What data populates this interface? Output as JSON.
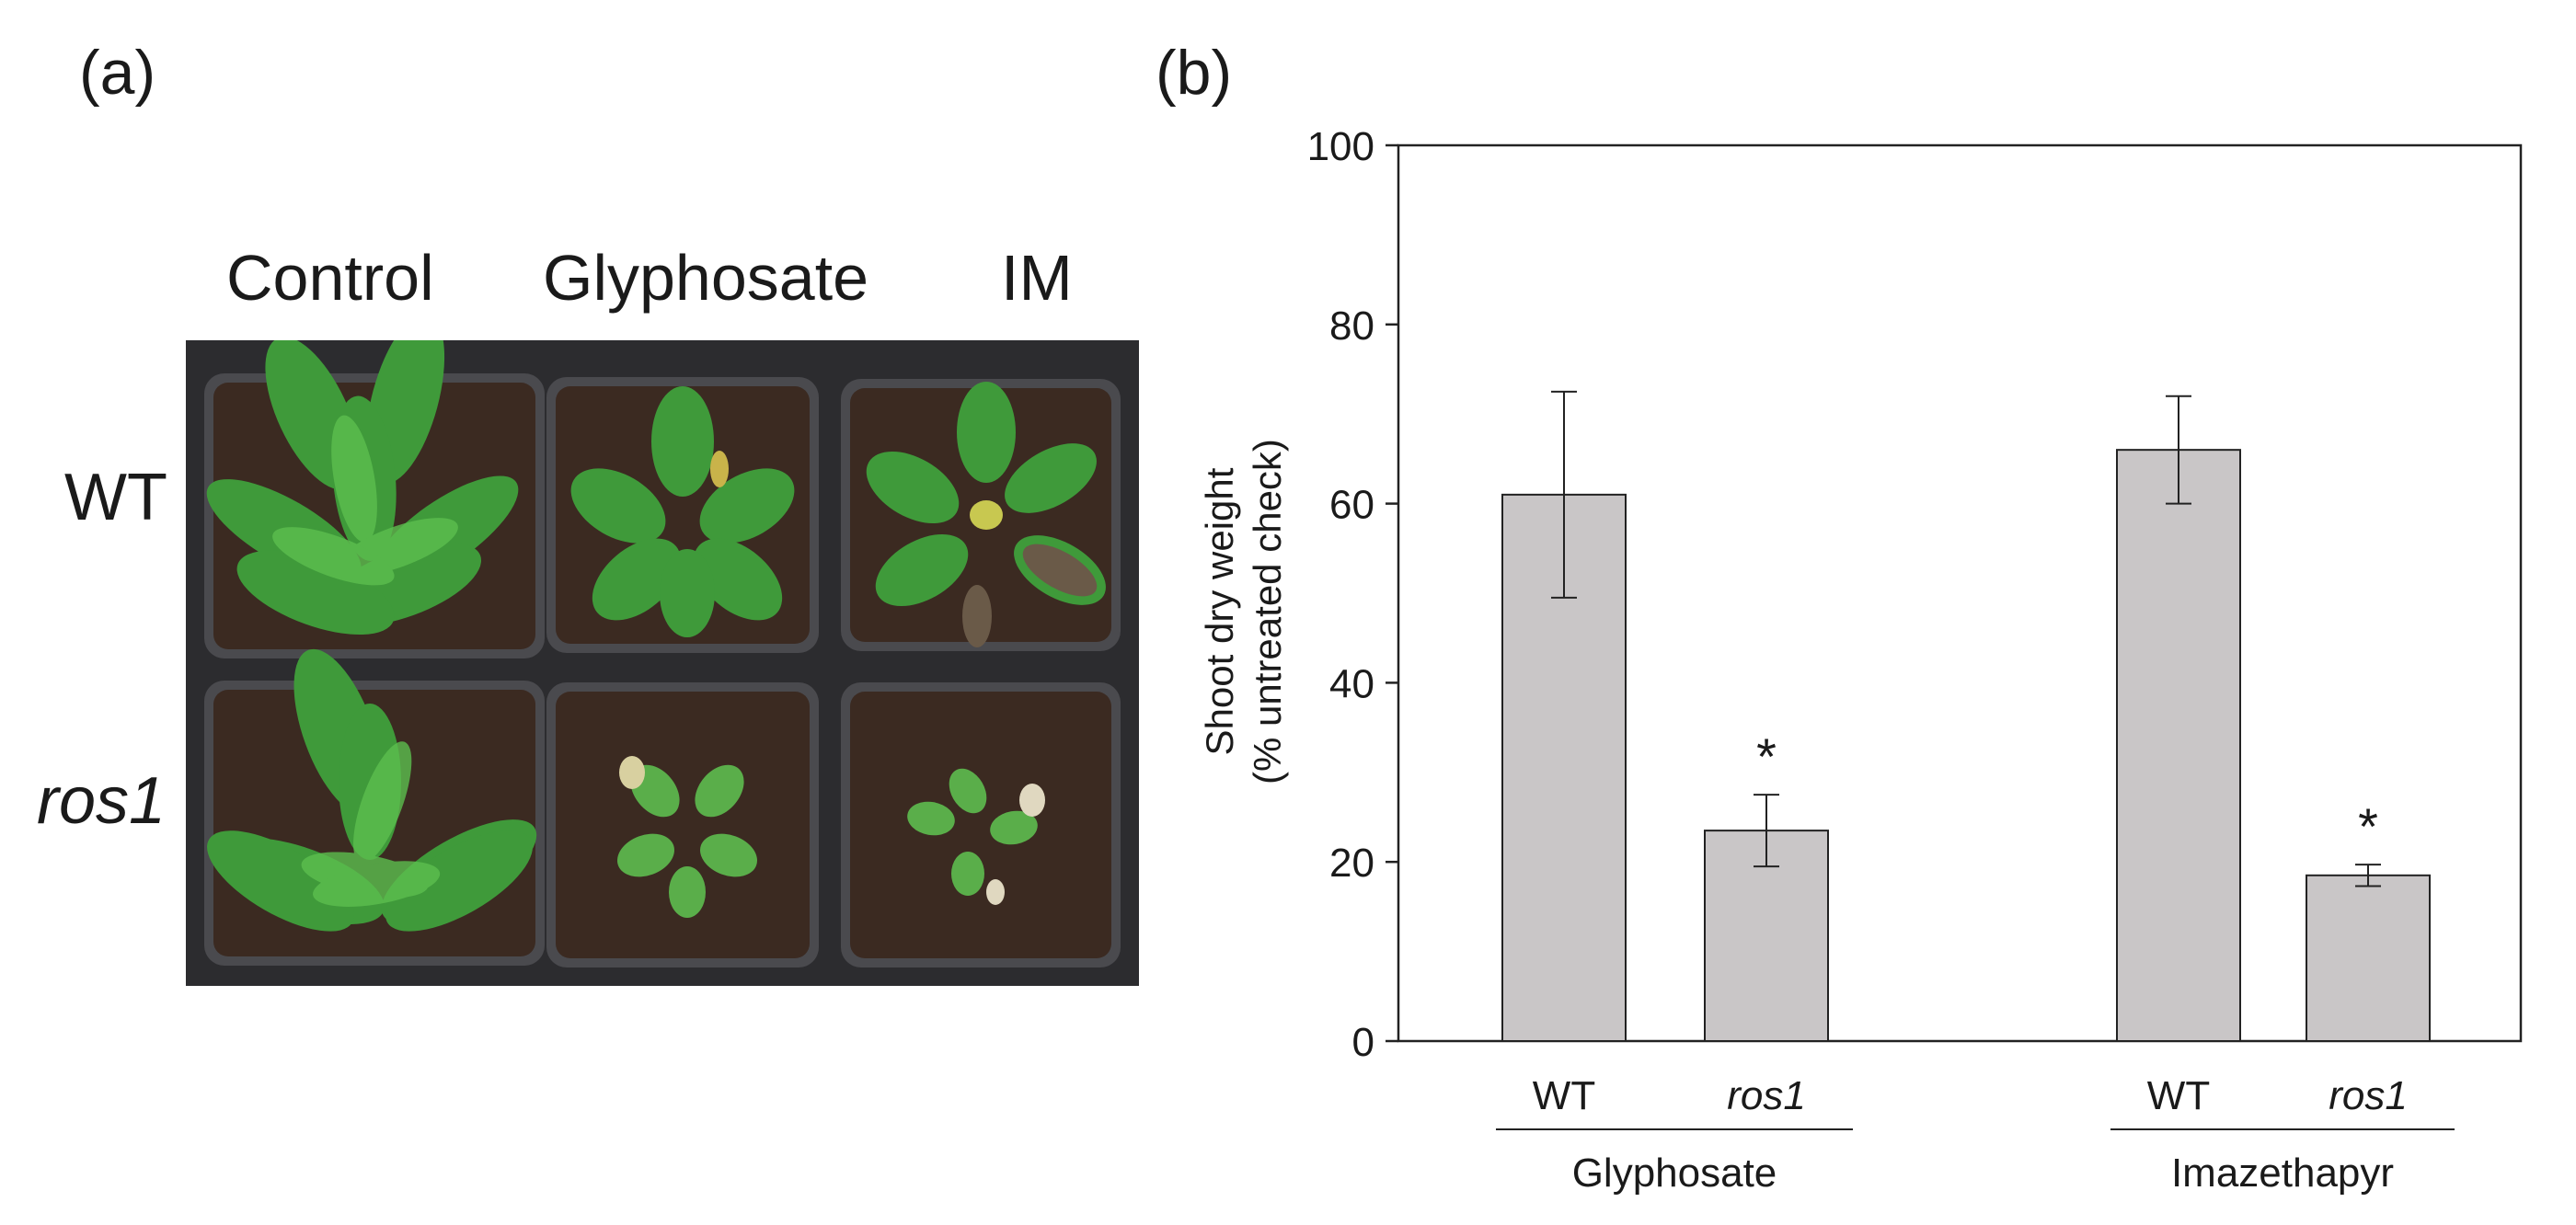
{
  "panel_a": {
    "label": "(a)",
    "columns": [
      "Control",
      "Glyphosate",
      "IM"
    ],
    "rows": [
      "WT",
      "ros1"
    ],
    "colors": {
      "background": "#2c2c2f",
      "soil": "#3b2a21",
      "pot": "#4a4a4e",
      "leaf": "#3f9a3a",
      "leaf_light": "#5cbf4f"
    }
  },
  "panel_b": {
    "label": "(b)",
    "chart_data": {
      "type": "bar",
      "ylabel_line1": "Shoot dry weight",
      "ylabel_line2": "(% untreated check)",
      "ylim": [
        0,
        100
      ],
      "yticks": [
        0,
        20,
        40,
        60,
        80,
        100
      ],
      "groups": [
        {
          "name": "Glyphosate",
          "bars": [
            {
              "label": "WT",
              "value": 61,
              "error": 11.5,
              "significant": false
            },
            {
              "label": "ros1",
              "value": 23.5,
              "error": 4,
              "significant": true
            }
          ]
        },
        {
          "name": "Imazethapyr",
          "bars": [
            {
              "label": "WT",
              "value": 66,
              "error": 6,
              "significant": false
            },
            {
              "label": "ros1",
              "value": 18.5,
              "error": 1.2,
              "significant": true
            }
          ]
        }
      ],
      "significance_marker": "*",
      "grid": false,
      "colors": {
        "bar_fill": "#c9c6c7",
        "bar_stroke": "#222222",
        "axis": "#222222"
      }
    }
  }
}
